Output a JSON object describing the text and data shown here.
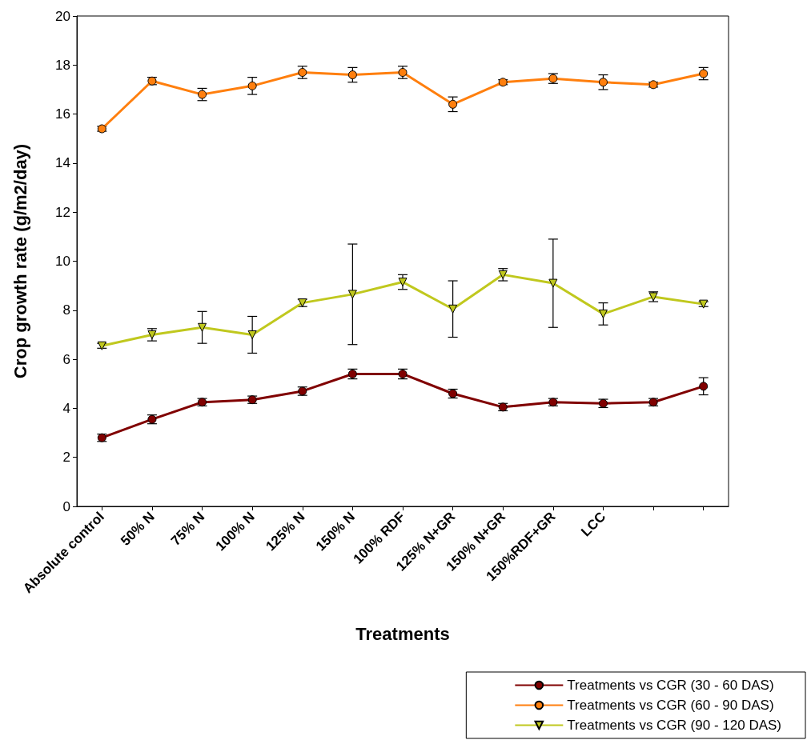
{
  "chart_data": {
    "type": "line",
    "xlabel": "Treatments",
    "ylabel": "Crop growth rate (g/m2/day)",
    "categories": [
      "Absolute control",
      "50% N",
      "75% N",
      "100% N",
      "125% N",
      "150% N",
      "100% RDF",
      "125% N+GR",
      "150% N+GR",
      "150%RDF+GR",
      "LCC",
      null,
      null
    ],
    "ylim": [
      0,
      20
    ],
    "yticks": [
      0,
      2,
      4,
      6,
      8,
      10,
      12,
      14,
      16,
      18,
      20
    ],
    "grid": false,
    "legend": "bottom right",
    "series": [
      {
        "name": "Treatments vs CGR (30 - 60 DAS)",
        "color": "#800000",
        "marker": "circle",
        "values": [
          2.8,
          3.55,
          4.25,
          4.35,
          4.7,
          5.4,
          5.4,
          4.6,
          4.05,
          4.25,
          4.2,
          4.25,
          4.9
        ],
        "errors": [
          0.15,
          0.18,
          0.15,
          0.15,
          0.17,
          0.2,
          0.2,
          0.18,
          0.15,
          0.15,
          0.17,
          0.15,
          0.35
        ]
      },
      {
        "name": "Treatments vs CGR (60 - 90 DAS)",
        "color": "#ff7f0e",
        "marker": "circle",
        "values": [
          15.4,
          17.35,
          16.8,
          17.15,
          17.7,
          17.6,
          17.7,
          16.4,
          17.3,
          17.45,
          17.3,
          17.2,
          17.65
        ],
        "errors": [
          0.1,
          0.15,
          0.25,
          0.35,
          0.25,
          0.3,
          0.25,
          0.3,
          0.1,
          0.2,
          0.3,
          0.1,
          0.25
        ]
      },
      {
        "name": "Treatments vs CGR (90 - 120 DAS)",
        "color": "#c0c81e",
        "marker": "triangle",
        "values": [
          6.55,
          7.0,
          7.3,
          7.0,
          8.3,
          8.65,
          9.15,
          8.05,
          9.45,
          9.1,
          7.85,
          8.55,
          8.25
        ],
        "errors": [
          0.1,
          0.25,
          0.65,
          0.75,
          0.15,
          2.05,
          0.3,
          1.15,
          0.25,
          1.8,
          0.45,
          0.2,
          0.1
        ]
      }
    ]
  }
}
